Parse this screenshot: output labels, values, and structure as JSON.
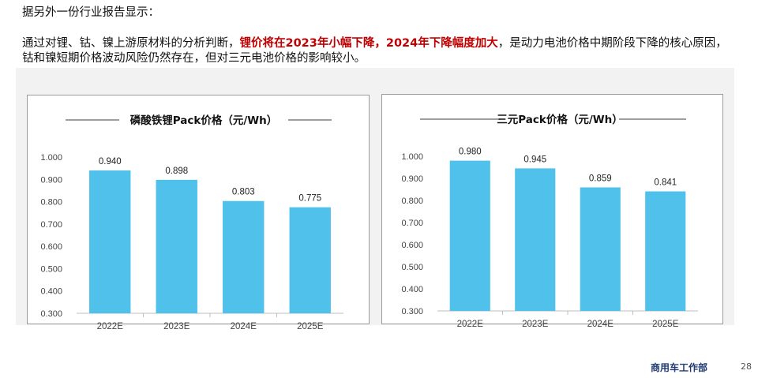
{
  "intro": "据另外一份行业报告显示：",
  "paragraph": {
    "before": "通过对锂、钴、镍上游原材料的分析判断，",
    "highlight": "锂价将在2023年小幅下降，2024年下降幅度加大",
    "after": "，是动力电池价格中期阶段下降的核心原因，钴和镍短期价格波动风险仍然存在，但对三元电池价格的影响较小。"
  },
  "colors": {
    "bar": "#4fc1ea",
    "highlight": "#c00000",
    "footer": "#1f3b73"
  },
  "chart_data": [
    {
      "type": "bar",
      "title": "磷酸铁锂Pack价格（元/Wh）",
      "categories": [
        "2022E",
        "2023E",
        "2024E",
        "2025E"
      ],
      "values": [
        0.94,
        0.898,
        0.803,
        0.775
      ],
      "value_labels": [
        "0.940",
        "0.898",
        "0.803",
        "0.775"
      ],
      "ylim": [
        0.3,
        1.0
      ],
      "yticks": [
        "0.300",
        "0.400",
        "0.500",
        "0.600",
        "0.700",
        "0.800",
        "0.900",
        "1.000"
      ],
      "xlabel": "",
      "ylabel": "",
      "grid": false
    },
    {
      "type": "bar",
      "title": "三元Pack价格（元/Wh）",
      "categories": [
        "2022E",
        "2023E",
        "2024E",
        "2025E"
      ],
      "values": [
        0.98,
        0.945,
        0.859,
        0.841
      ],
      "value_labels": [
        "0.980",
        "0.945",
        "0.859",
        "0.841"
      ],
      "ylim": [
        0.3,
        1.0
      ],
      "yticks": [
        "0.300",
        "0.400",
        "0.500",
        "0.600",
        "0.700",
        "0.800",
        "0.900",
        "1.000"
      ],
      "xlabel": "",
      "ylabel": "",
      "grid": false
    }
  ],
  "footer": {
    "department": "商用车工作部",
    "page": "28"
  }
}
